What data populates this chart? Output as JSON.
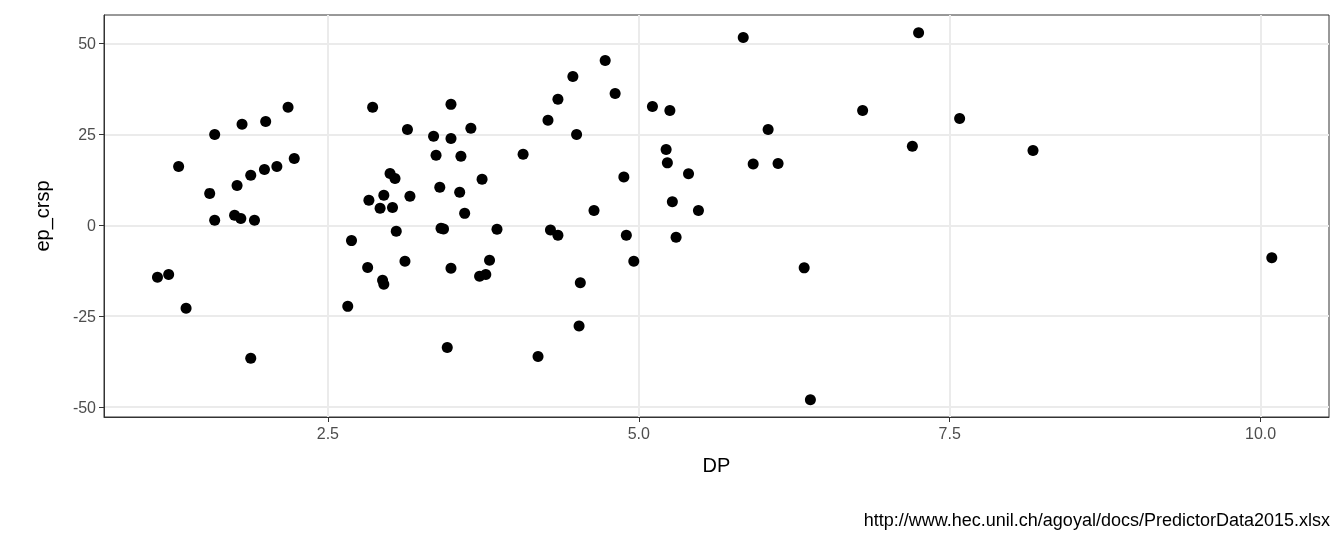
{
  "chart_data": {
    "type": "scatter",
    "xlabel": "DP",
    "ylabel": "ep_crsp",
    "annotations": [
      "http://www.hec.unil.ch/agoyal/docs/PredictorData2015.xlsx"
    ],
    "series": [
      {
        "color": "#000000",
        "x": [
          1.13,
          1.22,
          1.3,
          1.36,
          1.55,
          1.59,
          1.59,
          1.81,
          1.77,
          1.75,
          1.8,
          1.88,
          1.91,
          1.88,
          2.0,
          1.99,
          2.09,
          2.18,
          2.23,
          3.49,
          2.86,
          3.14,
          3.35,
          3.49,
          3.65,
          3.37,
          3.57,
          3.0,
          3.04,
          3.74,
          3.4,
          3.56,
          2.95,
          2.83,
          3.16,
          2.92,
          3.02,
          3.6,
          3.41,
          3.43,
          3.05,
          3.86,
          2.69,
          3.12,
          3.8,
          2.82,
          3.49,
          2.94,
          2.95,
          3.72,
          3.77,
          2.66,
          3.46,
          5.84,
          4.73,
          4.47,
          4.81,
          4.35,
          5.11,
          5.25,
          6.8,
          4.27,
          6.04,
          4.5,
          7.2,
          5.22,
          4.07,
          5.23,
          5.92,
          6.12,
          5.4,
          4.88,
          5.27,
          4.64,
          5.48,
          4.29,
          4.35,
          4.9,
          5.3,
          4.96,
          6.33,
          4.53,
          4.52,
          4.19,
          6.38,
          7.25,
          7.58,
          8.17,
          10.09
        ],
        "values": [
          -14.3,
          -13.5,
          16.2,
          -22.8,
          8.8,
          25.0,
          1.4,
          27.8,
          11.0,
          2.8,
          1.9,
          13.8,
          1.4,
          -36.6,
          28.6,
          15.4,
          16.2,
          32.5,
          18.4,
          33.3,
          32.5,
          26.4,
          24.5,
          23.9,
          26.7,
          19.3,
          19.0,
          14.3,
          12.9,
          12.7,
          10.5,
          9.1,
          8.3,
          6.9,
          8.0,
          4.7,
          4.9,
          3.3,
          -0.8,
          -1.0,
          -1.6,
          -1.1,
          -4.2,
          -9.9,
          -9.6,
          -11.6,
          -11.8,
          -15.1,
          -16.2,
          -14.0,
          -13.5,
          -22.3,
          -33.6,
          51.7,
          45.4,
          41.0,
          36.3,
          34.7,
          32.7,
          31.6,
          31.6,
          28.9,
          26.4,
          25.0,
          21.8,
          20.9,
          19.6,
          17.2,
          16.9,
          17.0,
          14.2,
          13.3,
          6.5,
          4.1,
          4.1,
          -1.3,
          -2.7,
          -2.7,
          -3.3,
          -9.9,
          -11.7,
          -15.8,
          -27.7,
          -36.1,
          -48.0,
          53.0,
          29.4,
          20.6,
          -8.9
        ]
      }
    ],
    "xlim": [
      0.7,
      10.55
    ],
    "xticks": [
      2.5,
      {
        "value": 5,
        "label": "5.0"
      },
      7.5,
      {
        "value": 10,
        "label": "10.0"
      }
    ],
    "ylim": [
      -52.75,
      57.9
    ],
    "yticks": [
      -50,
      -25,
      0,
      25,
      50
    ],
    "grid": true,
    "marker": "circle"
  }
}
